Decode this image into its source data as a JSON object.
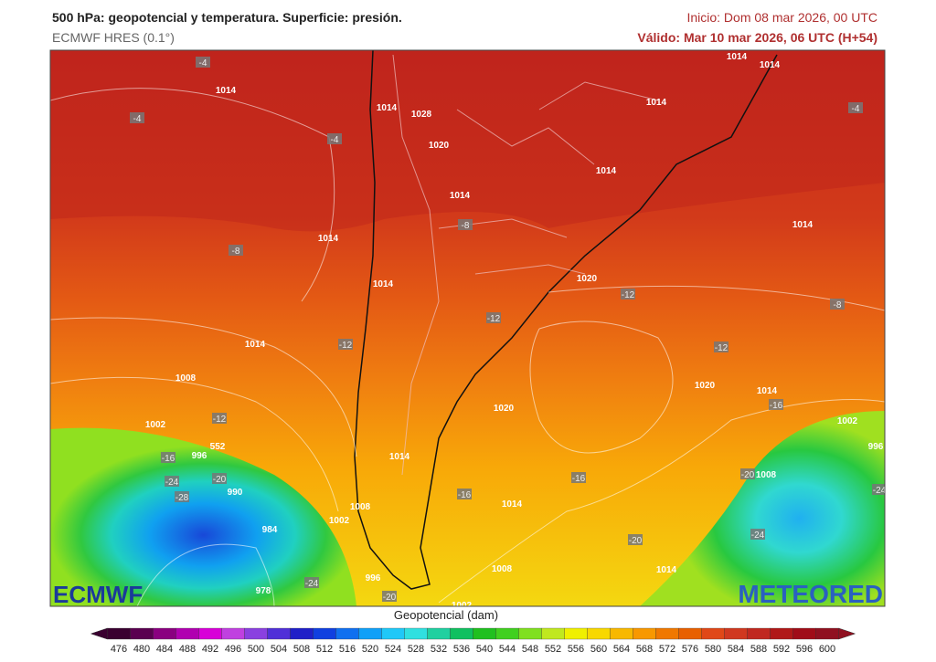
{
  "header": {
    "title": "500 hPa: geopotencial y temperatura. Superficie: presión.",
    "model": "ECMWF HRES (0.1°)",
    "init": "Inicio: Dom 08 mar 2026, 00 UTC",
    "valid": "Válido: Mar 10 mar 2026, 06 UTC (H+54)"
  },
  "logos": {
    "left": "ECMWF",
    "right": "METEORED"
  },
  "map_labels": [
    "1014",
    "-4",
    "-4",
    "-4",
    "1014",
    "1028",
    "1020",
    "1014",
    "-8",
    "1014",
    "-8",
    "1014",
    "1014",
    "1014",
    "1014",
    "-4",
    "1014",
    "1014",
    "1020",
    "-12",
    "-8",
    "-12",
    "-12",
    "1014",
    "-12",
    "1008",
    "1020",
    "1014",
    "-16",
    "1020",
    "-12",
    "1002",
    "1002",
    "996",
    "552",
    "-16",
    "996",
    "1014",
    "-20",
    "-24",
    "-20",
    "1008",
    "-16",
    "990",
    "-28",
    "-16",
    "1014",
    "1008",
    "-24",
    "1002",
    "984",
    "-24",
    "-20",
    "1008",
    "1014",
    "996",
    "-24",
    "978",
    "-20",
    "1002"
  ],
  "colorbar": {
    "label": "Geopotencial (dam)",
    "ticks": [
      476,
      480,
      484,
      488,
      492,
      496,
      500,
      504,
      508,
      512,
      516,
      520,
      524,
      528,
      532,
      536,
      540,
      544,
      548,
      552,
      556,
      560,
      564,
      568,
      572,
      576,
      580,
      584,
      588,
      592,
      596,
      600
    ],
    "colors": [
      "#3a0030",
      "#5a0050",
      "#8a0080",
      "#b000b0",
      "#d800d8",
      "#c040e0",
      "#8a40e0",
      "#5030d8",
      "#2020c8",
      "#1040e0",
      "#1070f0",
      "#10a0f8",
      "#20c8f8",
      "#30e0e0",
      "#20d0a0",
      "#10c060",
      "#20c020",
      "#40d020",
      "#80e020",
      "#c0e820",
      "#f0f000",
      "#f8d800",
      "#f8b800",
      "#f89800",
      "#f07800",
      "#e86000",
      "#e04818",
      "#d03820",
      "#c02820",
      "#b01818",
      "#a00c18",
      "#901020"
    ]
  }
}
